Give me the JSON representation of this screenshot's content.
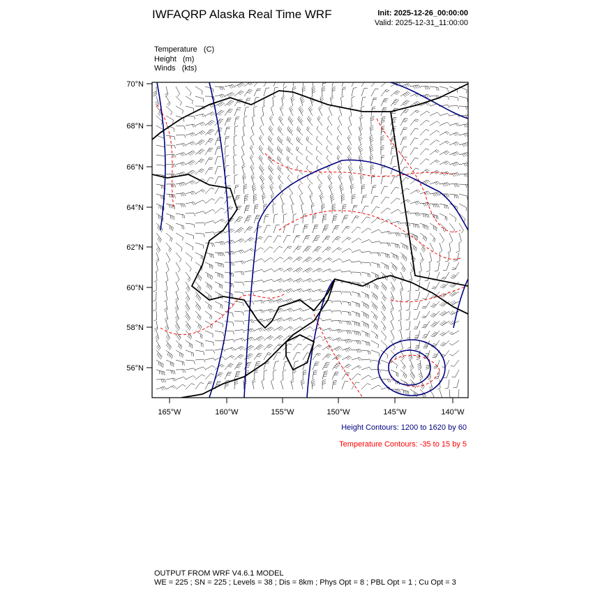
{
  "header": {
    "title": "IWFAQRP Alaska Real Time WRF",
    "init": "Init: 2025-12-26_00:00:00",
    "valid": "Valid: 2025-12-31_11:00:00"
  },
  "fields": [
    "Temperature   (C)",
    "Height   (m)",
    "Winds   (kts)"
  ],
  "map": {
    "lat_labels": [
      "70°N",
      "68°N",
      "66°N",
      "64°N",
      "62°N",
      "60°N",
      "58°N",
      "56°N"
    ],
    "lon_labels": [
      "165°W",
      "160°W",
      "155°W",
      "150°W",
      "145°W",
      "140°W"
    ]
  },
  "contours": {
    "height": "Height Contours: 1200 to 1620 by 60",
    "temperature": "Temperature Contours: -35 to 15 by 5"
  },
  "footer": {
    "line1": "OUTPUT FROM WRF V4.6.1 MODEL",
    "line2": "WE = 225 ; SN = 225 ; Levels = 38 ; Dis = 8km ; Phys Opt = 8 ; PBL Opt = 1 ; Cu Opt = 3"
  }
}
